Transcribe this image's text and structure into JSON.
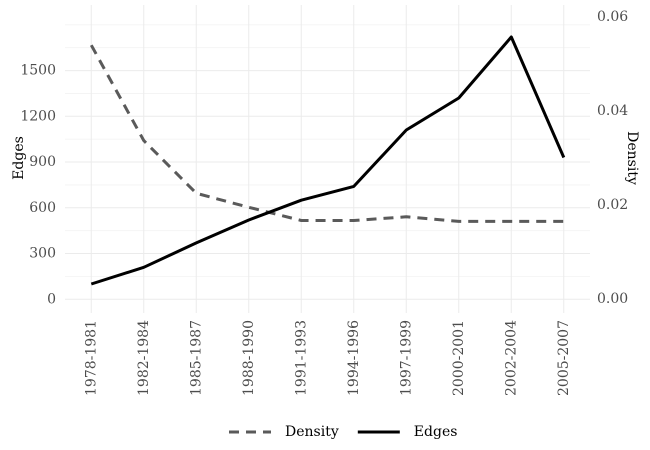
{
  "chart_data": {
    "type": "line",
    "categories": [
      "1978-1981",
      "1982-1984",
      "1985-1987",
      "1988-1990",
      "1991-1993",
      "1994-1996",
      "1997-1999",
      "2000-2001",
      "2002-2004",
      "2005-2007"
    ],
    "series": [
      {
        "name": "Density",
        "axis": "right",
        "line_style": "dashed",
        "color": "#5a5a5a",
        "values": [
          0.054,
          0.0337,
          0.0225,
          0.0195,
          0.0167,
          0.0167,
          0.0175,
          0.0165,
          0.0165,
          0.0165
        ]
      },
      {
        "name": "Edges",
        "axis": "left",
        "line_style": "solid",
        "color": "#000000",
        "values": [
          100,
          210,
          370,
          520,
          650,
          740,
          1110,
          1320,
          1720,
          930
        ]
      }
    ],
    "ylabel": "Edges",
    "ylabel_right": "Density",
    "ylim": [
      -90,
      1930
    ],
    "ylim_right": [
      0,
      0.06
    ],
    "yticks": [
      "0",
      "300",
      "600",
      "900",
      "1200",
      "1500"
    ],
    "yticks_right": [
      "0.00",
      "0.02",
      "0.04",
      "0.06"
    ],
    "grid": true,
    "legend_position": "bottom"
  }
}
